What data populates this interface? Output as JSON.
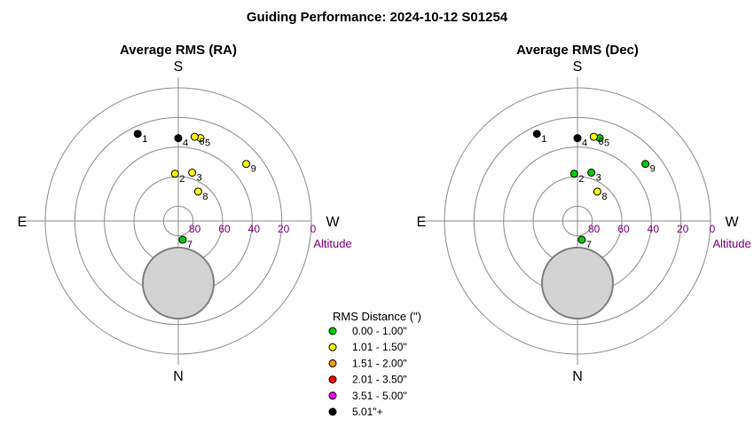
{
  "title": "Guiding Performance: 2024-10-12 S01254",
  "compass": {
    "north": "N",
    "south": "S",
    "east": "E",
    "west": "W"
  },
  "altitude_label": "Altitude",
  "altitude_ticks": [
    "80",
    "60",
    "40",
    "20",
    "0"
  ],
  "legend": {
    "title": "RMS Distance (\")",
    "items": [
      {
        "label": "0.00 - 1.00\"",
        "color": "#00cc00"
      },
      {
        "label": "1.01 - 1.50\"",
        "color": "#ffff00"
      },
      {
        "label": "1.51 - 2.00\"",
        "color": "#ff9900"
      },
      {
        "label": "2.01 - 3.50\"",
        "color": "#ff0000"
      },
      {
        "label": "3.51 - 5.00\"",
        "color": "#ff00ff"
      },
      {
        "label": "5.01\"+",
        "color": "#000000"
      }
    ]
  },
  "colors": {
    "axis_text": "#800080",
    "ring": "#8c8c8c",
    "moon_fill": "#d3d3d3"
  },
  "chart_data": [
    {
      "type": "scatter",
      "projection": "polar-altaz",
      "title": "Average RMS (RA)",
      "radial_axis": "Altitude",
      "radial_range": [
        90,
        0
      ],
      "points": [
        {
          "label": "1",
          "azimuth": 155,
          "altitude": 25,
          "color": "#000000"
        },
        {
          "label": "2",
          "azimuth": 176,
          "altitude": 58,
          "color": "#ffff00"
        },
        {
          "label": "3",
          "azimuth": 196,
          "altitude": 56,
          "color": "#ffff00"
        },
        {
          "label": "4",
          "azimuth": 180,
          "altitude": 34,
          "color": "#000000"
        },
        {
          "label": "5",
          "azimuth": 195,
          "altitude": 32,
          "color": "#ffff00"
        },
        {
          "label": "6",
          "azimuth": 191,
          "altitude": 32,
          "color": "#ffff00"
        },
        {
          "label": "7",
          "azimuth": 347,
          "altitude": 77,
          "color": "#00cc00"
        },
        {
          "label": "8",
          "azimuth": 214,
          "altitude": 66,
          "color": "#ffff00"
        },
        {
          "label": "9",
          "azimuth": 230,
          "altitude": 30,
          "color": "#ffff00"
        }
      ],
      "moon": {
        "azimuth": 0,
        "altitude": 48,
        "radius_deg": 24
      }
    },
    {
      "type": "scatter",
      "projection": "polar-altaz",
      "title": "Average RMS (Dec)",
      "radial_axis": "Altitude",
      "radial_range": [
        90,
        0
      ],
      "points": [
        {
          "label": "1",
          "azimuth": 155,
          "altitude": 25,
          "color": "#000000"
        },
        {
          "label": "2",
          "azimuth": 176,
          "altitude": 58,
          "color": "#00cc00"
        },
        {
          "label": "3",
          "azimuth": 196,
          "altitude": 56,
          "color": "#00cc00"
        },
        {
          "label": "4",
          "azimuth": 180,
          "altitude": 34,
          "color": "#000000"
        },
        {
          "label": "5",
          "azimuth": 195,
          "altitude": 32,
          "color": "#00cc00"
        },
        {
          "label": "6",
          "azimuth": 191,
          "altitude": 32,
          "color": "#ffff00"
        },
        {
          "label": "7",
          "azimuth": 347,
          "altitude": 77,
          "color": "#00cc00"
        },
        {
          "label": "8",
          "azimuth": 214,
          "altitude": 66,
          "color": "#ffff00"
        },
        {
          "label": "9",
          "azimuth": 230,
          "altitude": 30,
          "color": "#00cc00"
        }
      ],
      "moon": {
        "azimuth": 0,
        "altitude": 48,
        "radius_deg": 24
      }
    }
  ]
}
